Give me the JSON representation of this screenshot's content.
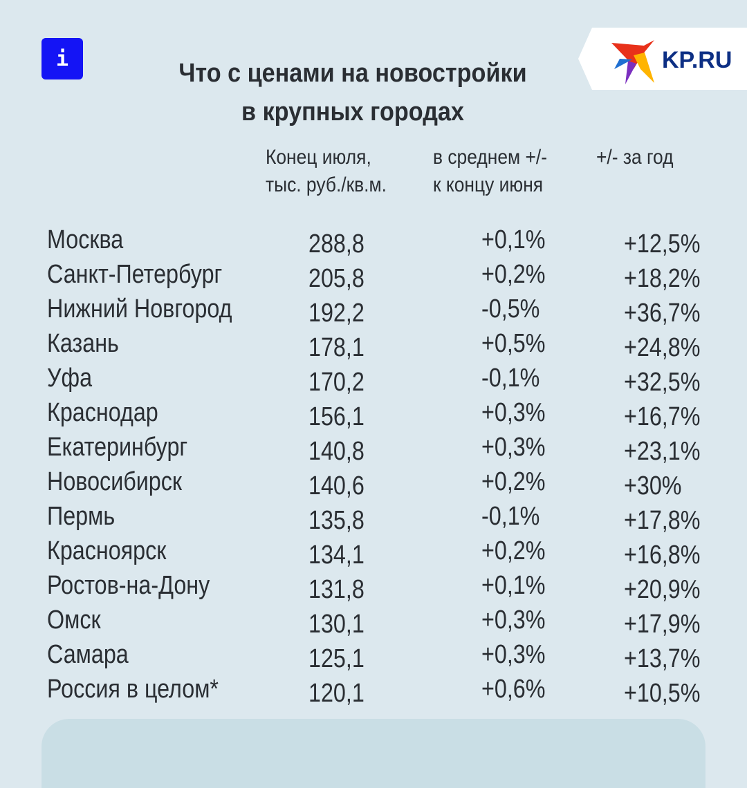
{
  "badge": {
    "icon": "info-icon",
    "label": "i"
  },
  "title": [
    "Что с ценами на новостройки",
    "в крупных городах"
  ],
  "logo": {
    "text": "KP.RU"
  },
  "colors": {
    "background": "#dce8ee",
    "badge": "#1414f5",
    "logo_text": "#0d2f84",
    "footer_box": "#c9dee5"
  },
  "chart_data": {
    "type": "table",
    "title": "Что с ценами на новостройки в крупных городах",
    "columns": [
      "",
      "Конец июля, тыс. руб./кв.м.",
      "в среднем +/- к концу июня",
      "+/- за год"
    ],
    "column_lines": [
      [
        "Конец июля,",
        "тыс. руб./кв.м."
      ],
      [
        "в среднем +/-",
        "к концу июня"
      ],
      [
        "+/- за год"
      ]
    ],
    "rows": [
      [
        "Москва",
        "288,8",
        "+0,1%",
        "+12,5%"
      ],
      [
        "Санкт-Петербург",
        "205,8",
        "+0,2%",
        "+18,2%"
      ],
      [
        "Нижний Новгород",
        "192,2",
        "-0,5%",
        "+36,7%"
      ],
      [
        "Казань",
        "178,1",
        "+0,5%",
        "+24,8%"
      ],
      [
        "Уфа",
        "170,2",
        "-0,1%",
        "+32,5%"
      ],
      [
        "Краснодар",
        "156,1",
        "+0,3%",
        "+16,7%"
      ],
      [
        "Екатеринбург",
        "140,8",
        "+0,3%",
        "+23,1%"
      ],
      [
        "Новосибирск",
        "140,6",
        "+0,2%",
        "+30%"
      ],
      [
        "Пермь",
        "135,8",
        "-0,1%",
        "+17,8%"
      ],
      [
        "Красноярск",
        "134,1",
        "+0,2%",
        "+16,8%"
      ],
      [
        "Ростов-на-Дону",
        "131,8",
        "+0,1%",
        "+20,9%"
      ],
      [
        "Омск",
        "130,1",
        "+0,3%",
        "+17,9%"
      ],
      [
        "Самара",
        "125,1",
        "+0,3%",
        "+13,7%"
      ],
      [
        "Россия в целом*",
        "120,1",
        "+0,6%",
        "+10,5%"
      ]
    ]
  }
}
